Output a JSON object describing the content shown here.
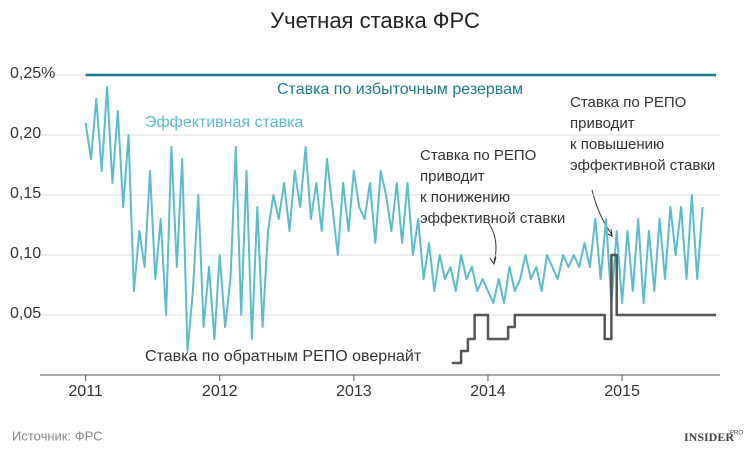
{
  "chart_data": {
    "type": "line",
    "title": "Учетная ставка ФРС",
    "xlim": [
      2010.66,
      2015.73
    ],
    "xticks": [
      2011,
      2012,
      2013,
      2014,
      2015
    ],
    "ylim": [
      0,
      0.26
    ],
    "yticks": [
      {
        "value": 0.05,
        "label": "0,05"
      },
      {
        "value": 0.1,
        "label": "0,10"
      },
      {
        "value": 0.15,
        "label": "0,15"
      },
      {
        "value": 0.2,
        "label": "0,20"
      },
      {
        "value": 0.25,
        "label": "0,25%"
      }
    ],
    "grid": true,
    "series": [
      {
        "name": "Ставка по избыточным резервам",
        "color": "#1b7d8a",
        "x": [
          2011,
          2015.7
        ],
        "values": [
          0.25,
          0.25
        ]
      },
      {
        "name": "Эффективная ставка",
        "color": "#5bbccc",
        "x": [
          2011,
          2011.04,
          2011.08,
          2011.12,
          2011.16,
          2011.2,
          2011.24,
          2011.28,
          2011.32,
          2011.36,
          2011.4,
          2011.44,
          2011.48,
          2011.52,
          2011.56,
          2011.6,
          2011.64,
          2011.68,
          2011.72,
          2011.76,
          2011.8,
          2011.84,
          2011.88,
          2011.92,
          2011.96,
          2012,
          2012.04,
          2012.08,
          2012.12,
          2012.16,
          2012.2,
          2012.24,
          2012.28,
          2012.32,
          2012.36,
          2012.4,
          2012.44,
          2012.48,
          2012.52,
          2012.56,
          2012.6,
          2012.64,
          2012.68,
          2012.72,
          2012.76,
          2012.8,
          2012.84,
          2012.88,
          2012.92,
          2012.96,
          2013,
          2013.04,
          2013.08,
          2013.12,
          2013.16,
          2013.2,
          2013.24,
          2013.28,
          2013.32,
          2013.36,
          2013.4,
          2013.44,
          2013.48,
          2013.52,
          2013.56,
          2013.6,
          2013.64,
          2013.68,
          2013.72,
          2013.76,
          2013.8,
          2013.84,
          2013.88,
          2013.92,
          2013.96,
          2014,
          2014.04,
          2014.08,
          2014.12,
          2014.16,
          2014.2,
          2014.24,
          2014.28,
          2014.32,
          2014.36,
          2014.4,
          2014.44,
          2014.48,
          2014.52,
          2014.56,
          2014.6,
          2014.64,
          2014.68,
          2014.72,
          2014.76,
          2014.8,
          2014.84,
          2014.88,
          2014.92,
          2014.96,
          2015,
          2015.04,
          2015.08,
          2015.12,
          2015.16,
          2015.2,
          2015.24,
          2015.28,
          2015.32,
          2015.36,
          2015.4,
          2015.44,
          2015.48,
          2015.52,
          2015.56,
          2015.6
        ],
        "values": [
          0.21,
          0.18,
          0.23,
          0.17,
          0.24,
          0.16,
          0.22,
          0.14,
          0.2,
          0.07,
          0.12,
          0.09,
          0.17,
          0.08,
          0.13,
          0.05,
          0.19,
          0.09,
          0.18,
          0.02,
          0.07,
          0.15,
          0.04,
          0.09,
          0.03,
          0.1,
          0.04,
          0.08,
          0.19,
          0.05,
          0.17,
          0.03,
          0.14,
          0.04,
          0.12,
          0.15,
          0.13,
          0.16,
          0.12,
          0.17,
          0.14,
          0.19,
          0.13,
          0.16,
          0.12,
          0.18,
          0.14,
          0.1,
          0.16,
          0.12,
          0.17,
          0.14,
          0.13,
          0.16,
          0.11,
          0.17,
          0.15,
          0.12,
          0.16,
          0.11,
          0.16,
          0.1,
          0.13,
          0.08,
          0.11,
          0.07,
          0.1,
          0.08,
          0.09,
          0.07,
          0.1,
          0.08,
          0.09,
          0.07,
          0.08,
          0.07,
          0.06,
          0.08,
          0.06,
          0.09,
          0.07,
          0.08,
          0.1,
          0.08,
          0.09,
          0.07,
          0.1,
          0.09,
          0.08,
          0.1,
          0.09,
          0.1,
          0.09,
          0.11,
          0.09,
          0.13,
          0.08,
          0.13,
          0.06,
          0.12,
          0.06,
          0.12,
          0.07,
          0.13,
          0.06,
          0.12,
          0.07,
          0.13,
          0.08,
          0.14,
          0.1,
          0.14,
          0.08,
          0.15,
          0.08,
          0.14
        ]
      },
      {
        "name": "Ставка по обратным РЕПО овернайт",
        "color": "#555555",
        "x": [
          2013.73,
          2013.8,
          2013.8,
          2013.85,
          2013.85,
          2013.9,
          2013.9,
          2014,
          2014,
          2014.15,
          2014.15,
          2014.2,
          2014.2,
          2014.87,
          2014.87,
          2014.92,
          2014.92,
          2014.96,
          2014.96,
          2015.7
        ],
        "values": [
          0.01,
          0.01,
          0.02,
          0.02,
          0.03,
          0.03,
          0.05,
          0.05,
          0.03,
          0.03,
          0.04,
          0.04,
          0.05,
          0.05,
          0.03,
          0.03,
          0.1,
          0.1,
          0.05,
          0.05
        ]
      }
    ],
    "annotations": [
      {
        "lines": [
          "Ставка по РЕПО",
          "приводит",
          "к понижению",
          "эффективной ставки"
        ]
      },
      {
        "lines": [
          "Ставка по РЕПО",
          "приводит",
          "к повышению",
          "эффективной ставки"
        ]
      }
    ],
    "source": "Источник: ФРС",
    "logo": "INSIDER",
    "logo_sup": "PRO"
  }
}
